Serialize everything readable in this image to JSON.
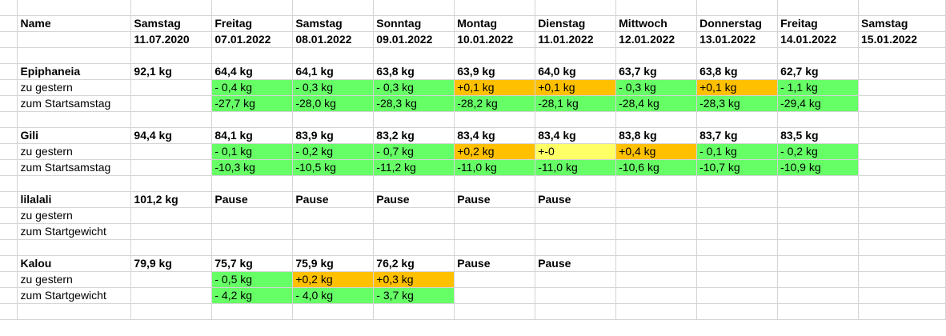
{
  "columns": [
    {
      "day": "Samstag",
      "date": "11.07.2020"
    },
    {
      "day": "Freitag",
      "date": "07.01.2022"
    },
    {
      "day": "Samstag",
      "date": "08.01.2022"
    },
    {
      "day": "Sonntag",
      "date": "09.01.2022"
    },
    {
      "day": "Montag",
      "date": "10.01.2022"
    },
    {
      "day": "Dienstag",
      "date": "11.01.2022"
    },
    {
      "day": "Mittwoch",
      "date": "12.01.2022"
    },
    {
      "day": "Donnerstag",
      "date": "13.01.2022"
    },
    {
      "day": "Freitag",
      "date": "14.01.2022"
    },
    {
      "day": "Samstag",
      "date": "15.01.2022"
    }
  ],
  "header": {
    "name_label": "Name"
  },
  "colors": {
    "green": "#66ff66",
    "orange": "#ffc000",
    "yellow": "#ffff66",
    "grid": "#d4d4d4"
  },
  "people": [
    {
      "name": "Epiphaneia",
      "weights": [
        "92,1 kg",
        "64,4 kg",
        "64,1 kg",
        "63,8 kg",
        "63,9 kg",
        "64,0 kg",
        "63,7 kg",
        "63,8 kg",
        "62,7 kg",
        ""
      ],
      "row2_label": "zu gestern",
      "row2": [
        {
          "v": "",
          "c": ""
        },
        {
          "v": "- 0,4 kg",
          "c": "green"
        },
        {
          "v": "- 0,3 kg",
          "c": "green"
        },
        {
          "v": "- 0,3 kg",
          "c": "green"
        },
        {
          "v": "+0,1 kg",
          "c": "orange"
        },
        {
          "v": "+0,1 kg",
          "c": "orange"
        },
        {
          "v": "- 0,3 kg",
          "c": "green"
        },
        {
          "v": "+0,1 kg",
          "c": "orange"
        },
        {
          "v": "- 1,1 kg",
          "c": "green"
        },
        {
          "v": "",
          "c": ""
        }
      ],
      "row3_label": "zum Startsamstag",
      "row3": [
        {
          "v": "",
          "c": ""
        },
        {
          "v": "-27,7 kg",
          "c": "green"
        },
        {
          "v": "-28,0 kg",
          "c": "green"
        },
        {
          "v": "-28,3 kg",
          "c": "green"
        },
        {
          "v": "-28,2 kg",
          "c": "green"
        },
        {
          "v": "-28,1 kg",
          "c": "green"
        },
        {
          "v": "-28,4 kg",
          "c": "green"
        },
        {
          "v": "-28,3 kg",
          "c": "green"
        },
        {
          "v": "-29,4 kg",
          "c": "green"
        },
        {
          "v": "",
          "c": ""
        }
      ]
    },
    {
      "name": "Gili",
      "weights": [
        "94,4 kg",
        "84,1 kg",
        "83,9 kg",
        "83,2 kg",
        "83,4 kg",
        "83,4 kg",
        "83,8 kg",
        "83,7 kg",
        "83,5 kg",
        ""
      ],
      "row2_label": "zu gestern",
      "row2": [
        {
          "v": "",
          "c": ""
        },
        {
          "v": "- 0,1 kg",
          "c": "green"
        },
        {
          "v": "- 0,2 kg",
          "c": "green"
        },
        {
          "v": "- 0,7 kg",
          "c": "green"
        },
        {
          "v": "+0,2 kg",
          "c": "orange"
        },
        {
          "v": "+-0",
          "c": "yellow"
        },
        {
          "v": "+0,4 kg",
          "c": "orange"
        },
        {
          "v": "- 0,1 kg",
          "c": "green"
        },
        {
          "v": "- 0,2 kg",
          "c": "green"
        },
        {
          "v": "",
          "c": ""
        }
      ],
      "row3_label": "zum Startsamstag",
      "row3": [
        {
          "v": "",
          "c": ""
        },
        {
          "v": "-10,3 kg",
          "c": "green"
        },
        {
          "v": "-10,5 kg",
          "c": "green"
        },
        {
          "v": "-11,2 kg",
          "c": "green"
        },
        {
          "v": "-11,0 kg",
          "c": "green"
        },
        {
          "v": "-11,0 kg",
          "c": "green"
        },
        {
          "v": "-10,6 kg",
          "c": "green"
        },
        {
          "v": "-10,7 kg",
          "c": "green"
        },
        {
          "v": "-10,9 kg",
          "c": "green"
        },
        {
          "v": "",
          "c": ""
        }
      ]
    },
    {
      "name": "lilalali",
      "weights": [
        "101,2 kg",
        "Pause",
        "Pause",
        "Pause",
        "Pause",
        "Pause",
        "",
        "",
        "",
        ""
      ],
      "row2_label": "zu gestern",
      "row2": [
        {
          "v": "",
          "c": ""
        },
        {
          "v": "",
          "c": ""
        },
        {
          "v": "",
          "c": ""
        },
        {
          "v": "",
          "c": ""
        },
        {
          "v": "",
          "c": ""
        },
        {
          "v": "",
          "c": ""
        },
        {
          "v": "",
          "c": ""
        },
        {
          "v": "",
          "c": ""
        },
        {
          "v": "",
          "c": ""
        },
        {
          "v": "",
          "c": ""
        }
      ],
      "row3_label": "zum Startgewicht",
      "row3": [
        {
          "v": "",
          "c": ""
        },
        {
          "v": "",
          "c": ""
        },
        {
          "v": "",
          "c": ""
        },
        {
          "v": "",
          "c": ""
        },
        {
          "v": "",
          "c": ""
        },
        {
          "v": "",
          "c": ""
        },
        {
          "v": "",
          "c": ""
        },
        {
          "v": "",
          "c": ""
        },
        {
          "v": "",
          "c": ""
        },
        {
          "v": "",
          "c": ""
        }
      ]
    },
    {
      "name": "Kalou",
      "weights": [
        "79,9 kg",
        "75,7 kg",
        "75,9 kg",
        "76,2 kg",
        "Pause",
        "Pause",
        "",
        "",
        "",
        ""
      ],
      "row2_label": "zu gestern",
      "row2": [
        {
          "v": "",
          "c": ""
        },
        {
          "v": "- 0,5 kg",
          "c": "green"
        },
        {
          "v": "+0,2 kg",
          "c": "orange"
        },
        {
          "v": "+0,3 kg",
          "c": "orange"
        },
        {
          "v": "",
          "c": ""
        },
        {
          "v": "",
          "c": ""
        },
        {
          "v": "",
          "c": ""
        },
        {
          "v": "",
          "c": ""
        },
        {
          "v": "",
          "c": ""
        },
        {
          "v": "",
          "c": ""
        }
      ],
      "row3_label": "zum Startgewicht",
      "row3": [
        {
          "v": "",
          "c": ""
        },
        {
          "v": "- 4,2 kg",
          "c": "green"
        },
        {
          "v": "- 4,0 kg",
          "c": "green"
        },
        {
          "v": "- 3,7 kg",
          "c": "green"
        },
        {
          "v": "",
          "c": ""
        },
        {
          "v": "",
          "c": ""
        },
        {
          "v": "",
          "c": ""
        },
        {
          "v": "",
          "c": ""
        },
        {
          "v": "",
          "c": ""
        },
        {
          "v": "",
          "c": ""
        }
      ]
    }
  ]
}
